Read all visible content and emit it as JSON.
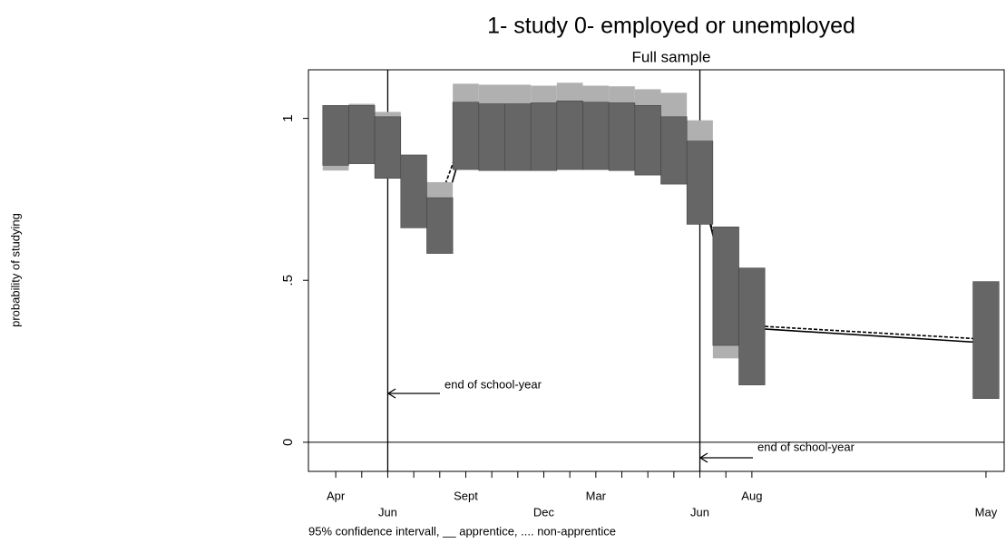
{
  "chart_data": {
    "type": "ci_boxes",
    "title": "1- study 0- employed or unemployed",
    "subtitle": "Full sample",
    "y_label": "probability of studying",
    "note": "95% confidence intervall, __ apprentice, .... non-apprentice",
    "annotations": [
      "end of school-year",
      "end of school-year"
    ],
    "x": [
      1,
      2,
      3,
      4,
      5,
      6,
      7,
      8,
      9,
      10,
      11,
      12,
      13,
      14,
      15,
      16,
      17,
      26
    ],
    "xlim": [
      -0.05,
      26.7
    ],
    "xticks": [
      {
        "value": 1,
        "label": "Apr"
      },
      {
        "value": 2,
        "label": null
      },
      {
        "value": 3,
        "label": "Jun"
      },
      {
        "value": 4,
        "label": null
      },
      {
        "value": 5,
        "label": null
      },
      {
        "value": 6,
        "label": "Sept"
      },
      {
        "value": 7,
        "label": null
      },
      {
        "value": 8,
        "label": null
      },
      {
        "value": 9,
        "label": "Dec"
      },
      {
        "value": 10,
        "label": null
      },
      {
        "value": 11,
        "label": "Mar"
      },
      {
        "value": 12,
        "label": null
      },
      {
        "value": 13,
        "label": null
      },
      {
        "value": 14,
        "label": null
      },
      {
        "value": 15,
        "label": "Jun"
      },
      {
        "value": 16,
        "label": null
      },
      {
        "value": 17,
        "label": "Aug"
      },
      {
        "value": 26,
        "label": "May"
      }
    ],
    "vlines": [
      3,
      15
    ],
    "ylim": [
      -0.09,
      1.15
    ],
    "yticks": [
      0,
      {
        "value": 0.5,
        "label": ".5"
      },
      1
    ],
    "series": [
      {
        "color": "#b0b0b0",
        "line_style": "dashed",
        "upper": [
          1.04,
          1.045,
          1.02,
          0.887,
          0.803,
          1.107,
          1.104,
          1.104,
          1.101,
          1.11,
          1.101,
          1.099,
          1.09,
          1.079,
          0.994,
          0.665,
          0.538,
          0.496
        ],
        "lower": [
          0.839,
          0.86,
          0.814,
          0.662,
          0.583,
          0.842,
          0.839,
          0.839,
          0.839,
          0.842,
          0.842,
          0.839,
          0.825,
          0.797,
          0.673,
          0.259,
          0.177,
          0.135
        ],
        "mean": [
          0.94,
          0.95,
          0.92,
          0.77,
          0.75,
          0.97,
          0.97,
          0.97,
          0.97,
          0.97,
          0.97,
          0.97,
          0.96,
          0.94,
          0.83,
          0.46,
          0.36,
          0.318
        ]
      },
      {
        "color": "#666666",
        "line_style": "solid",
        "upper": [
          1.04,
          1.04,
          1.005,
          0.887,
          0.755,
          1.05,
          1.045,
          1.045,
          1.048,
          1.054,
          1.05,
          1.048,
          1.04,
          1.005,
          0.93,
          0.665,
          0.538,
          0.496
        ],
        "lower": [
          0.855,
          0.86,
          0.815,
          0.662,
          0.583,
          0.842,
          0.839,
          0.839,
          0.839,
          0.842,
          0.842,
          0.839,
          0.825,
          0.797,
          0.673,
          0.299,
          0.177,
          0.135
        ],
        "mean": [
          0.95,
          0.95,
          0.91,
          0.77,
          0.67,
          0.946,
          0.94,
          0.94,
          0.94,
          0.95,
          0.95,
          0.94,
          0.93,
          0.9,
          0.8,
          0.48,
          0.352,
          0.307
        ]
      }
    ]
  }
}
